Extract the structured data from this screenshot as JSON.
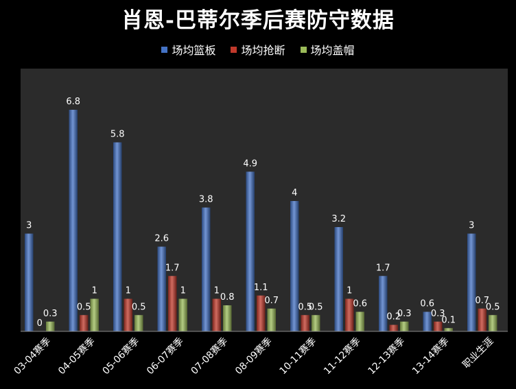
{
  "chart_data": {
    "type": "bar",
    "title": "肖恩-巴蒂尔季后赛防守数据",
    "categories": [
      "03-04赛季",
      "04-05赛季",
      "05-06赛季",
      "06-07赛季",
      "07-08赛季",
      "08-09赛季",
      "10-11赛季",
      "11-12赛季",
      "12-13赛季",
      "13-14赛季",
      "职业生涯"
    ],
    "series": [
      {
        "name": "场均篮板",
        "color": "#4472c4",
        "values": [
          3,
          6.8,
          5.8,
          2.6,
          3.8,
          4.9,
          4,
          3.2,
          1.7,
          0.6,
          3
        ]
      },
      {
        "name": "场均抢断",
        "color": "#c0392b",
        "values": [
          0,
          0.5,
          1,
          1.7,
          1,
          1.1,
          0.5,
          1,
          0.2,
          0.3,
          0.7
        ]
      },
      {
        "name": "场均盖帽",
        "color": "#9bbb59",
        "values": [
          0.3,
          1,
          0.5,
          1,
          0.8,
          0.7,
          0.5,
          0.6,
          0.3,
          0.1,
          0.5
        ]
      }
    ],
    "ylim": [
      0,
      6.8
    ],
    "legend_position": "top",
    "grid": false,
    "plot_background": "#2b2b2b",
    "page_background": "#000000"
  }
}
